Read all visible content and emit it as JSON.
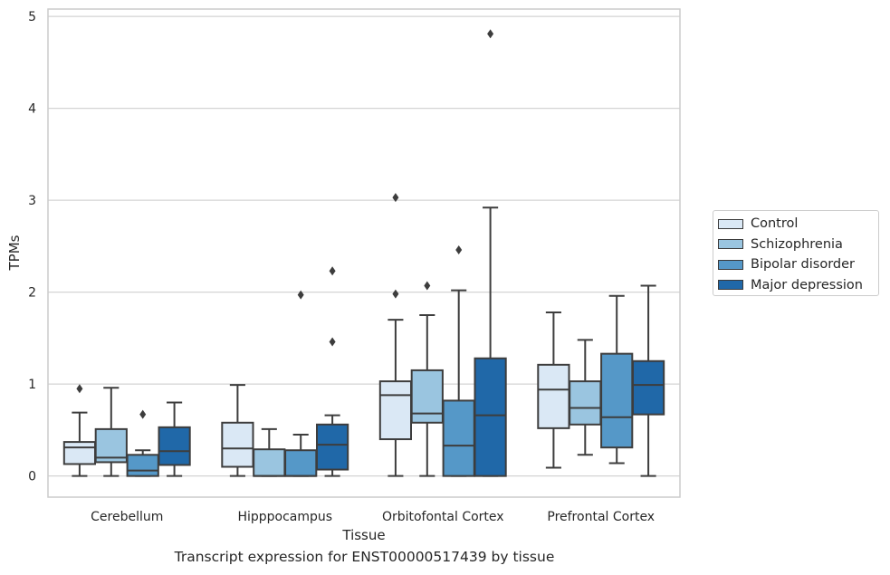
{
  "chart_data": {
    "type": "box",
    "caption": "Transcript expression for ENST00000517439 by tissue",
    "xlabel": "Tissue",
    "ylabel": "TPMs",
    "ylim": [
      -0.23,
      5.08
    ],
    "yticks": [
      0,
      1,
      2,
      3,
      4,
      5
    ],
    "categories": [
      "Cerebellum",
      "Hipppocampus",
      "Orbitofontal Cortex",
      "Prefrontal Cortex"
    ],
    "grid": true,
    "legend_position": "right",
    "series": [
      {
        "name": "Control",
        "color": "#dae8f5",
        "boxes": [
          {
            "whislo": 0.0,
            "q1": 0.13,
            "med": 0.31,
            "q3": 0.37,
            "whishi": 0.69,
            "fliers": [
              0.95
            ]
          },
          {
            "whislo": 0.0,
            "q1": 0.1,
            "med": 0.3,
            "q3": 0.58,
            "whishi": 0.99,
            "fliers": []
          },
          {
            "whislo": 0.0,
            "q1": 0.4,
            "med": 0.88,
            "q3": 1.03,
            "whishi": 1.7,
            "fliers": [
              1.98,
              3.03
            ]
          },
          {
            "whislo": 0.09,
            "q1": 0.52,
            "med": 0.94,
            "q3": 1.21,
            "whishi": 1.78,
            "fliers": []
          }
        ]
      },
      {
        "name": "Schizophrenia",
        "color": "#9ac5e0",
        "boxes": [
          {
            "whislo": 0.0,
            "q1": 0.15,
            "med": 0.2,
            "q3": 0.51,
            "whishi": 0.96,
            "fliers": []
          },
          {
            "whislo": 0.0,
            "q1": 0.0,
            "med": 0.0,
            "q3": 0.29,
            "whishi": 0.51,
            "fliers": []
          },
          {
            "whislo": 0.0,
            "q1": 0.58,
            "med": 0.68,
            "q3": 1.15,
            "whishi": 1.75,
            "fliers": [
              2.07
            ]
          },
          {
            "whislo": 0.23,
            "q1": 0.56,
            "med": 0.74,
            "q3": 1.03,
            "whishi": 1.48,
            "fliers": []
          }
        ]
      },
      {
        "name": "Bipolar disorder",
        "color": "#5598c8",
        "boxes": [
          {
            "whislo": 0.0,
            "q1": 0.0,
            "med": 0.06,
            "q3": 0.23,
            "whishi": 0.28,
            "fliers": [
              0.67
            ]
          },
          {
            "whislo": 0.0,
            "q1": 0.0,
            "med": 0.0,
            "q3": 0.28,
            "whishi": 0.45,
            "fliers": [
              1.97
            ]
          },
          {
            "whislo": 0.0,
            "q1": 0.0,
            "med": 0.33,
            "q3": 0.82,
            "whishi": 2.02,
            "fliers": [
              2.46
            ]
          },
          {
            "whislo": 0.14,
            "q1": 0.31,
            "med": 0.64,
            "q3": 1.33,
            "whishi": 1.96,
            "fliers": []
          }
        ]
      },
      {
        "name": "Major depression",
        "color": "#2068a8",
        "boxes": [
          {
            "whislo": 0.0,
            "q1": 0.12,
            "med": 0.27,
            "q3": 0.53,
            "whishi": 0.8,
            "fliers": []
          },
          {
            "whislo": 0.0,
            "q1": 0.07,
            "med": 0.34,
            "q3": 0.56,
            "whishi": 0.66,
            "fliers": [
              1.46,
              2.23
            ]
          },
          {
            "whislo": 0.0,
            "q1": 0.0,
            "med": 0.66,
            "q3": 1.28,
            "whishi": 2.92,
            "fliers": [
              4.81
            ]
          },
          {
            "whislo": 0.0,
            "q1": 0.67,
            "med": 0.99,
            "q3": 1.25,
            "whishi": 2.07,
            "fliers": []
          }
        ]
      }
    ]
  }
}
